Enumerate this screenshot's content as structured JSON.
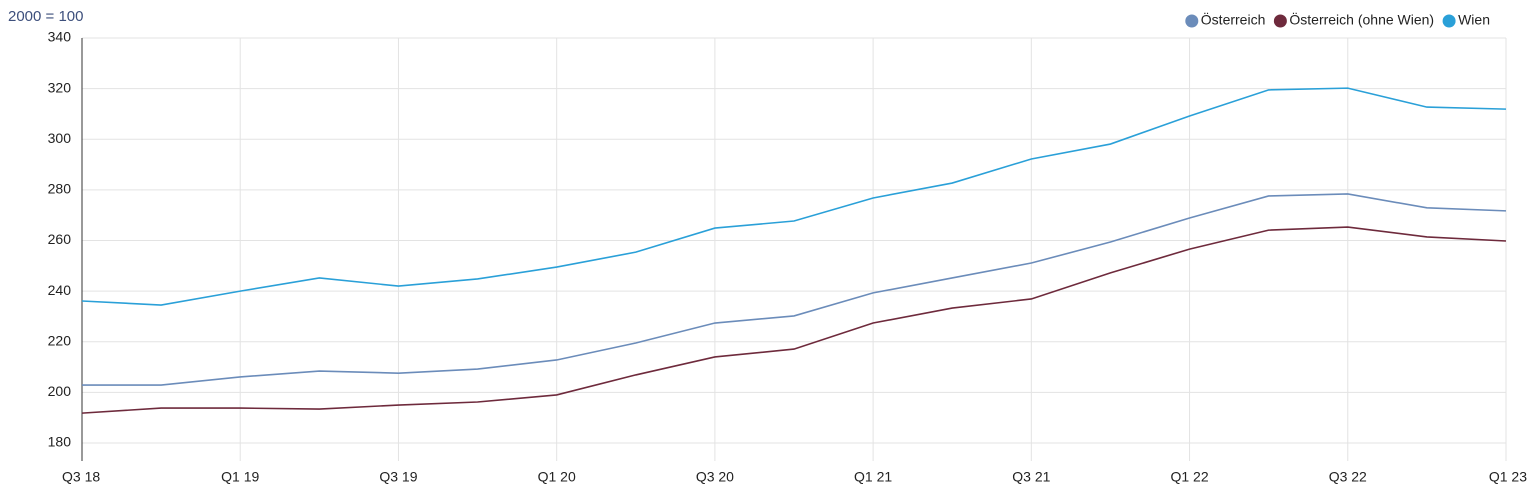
{
  "chart_data": {
    "type": "line",
    "y_label": "2000 = 100",
    "categories": [
      "Q3 18",
      null,
      "Q1 19",
      null,
      "Q3 19",
      null,
      "Q1 20",
      null,
      "Q3 20",
      null,
      "Q1 21",
      null,
      "Q3 21",
      null,
      "Q1 22",
      null,
      "Q3 22",
      null,
      "Q1 23"
    ],
    "series": [
      {
        "name": "Österreich",
        "color": "#6b8cba",
        "values": [
          202.9,
          202.9,
          206.1,
          208.4,
          207.6,
          209.2,
          212.8,
          219.5,
          227.4,
          230.2,
          239.3,
          245.2,
          251.1,
          259.4,
          268.9,
          277.6,
          278.4,
          272.9,
          271.7
        ]
      },
      {
        "name": "Österreich (ohne Wien)",
        "color": "#6e2a3c",
        "values": [
          191.8,
          193.8,
          193.8,
          193.4,
          195.0,
          196.2,
          199.0,
          206.9,
          214.0,
          217.1,
          227.4,
          233.3,
          236.9,
          247.2,
          256.6,
          264.1,
          265.3,
          261.4,
          259.8
        ]
      },
      {
        "name": "Wien",
        "color": "#2aa0d8",
        "values": [
          236.1,
          234.5,
          240.0,
          245.2,
          242.0,
          244.8,
          249.5,
          255.4,
          264.9,
          267.7,
          276.8,
          282.7,
          292.2,
          298.1,
          309.2,
          319.5,
          320.2,
          312.7,
          311.9
        ]
      }
    ],
    "ylim": [
      180,
      340
    ],
    "yticks": [
      180,
      200,
      220,
      240,
      260,
      280,
      300,
      320,
      340
    ],
    "grid": true,
    "legend": "top-right"
  }
}
